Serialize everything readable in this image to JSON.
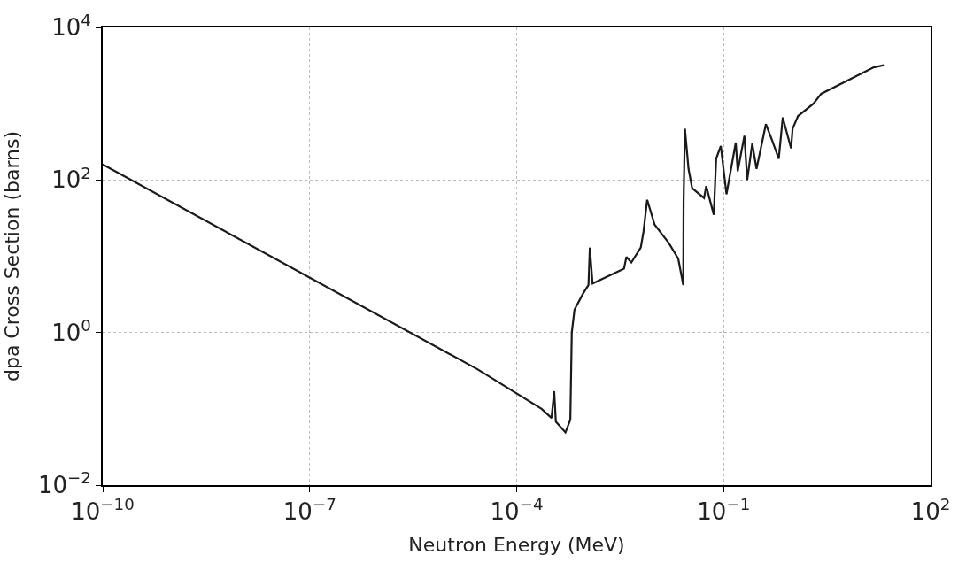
{
  "chart_data": {
    "type": "line",
    "xlabel": "Neutron Energy (MeV)",
    "ylabel": "dpa Cross Section (barns)",
    "log": "xy",
    "grid": true,
    "marker": "none",
    "line_style": "solid",
    "xlim": [
      1e-10,
      100
    ],
    "ylim": [
      0.01,
      10000
    ],
    "xticks": [
      {
        "value": 1e-10,
        "label": "10$^{−10}$"
      },
      {
        "value": 1e-07,
        "label": "10$^{−7}$"
      },
      {
        "value": 0.0001,
        "label": "10$^{−4}$"
      },
      {
        "value": 0.1,
        "label": "10$^{−1}$"
      },
      {
        "value": 100,
        "label": "10$^{2}$"
      }
    ],
    "yticks": [
      {
        "value": 0.01,
        "label": "10$^{−2}$"
      },
      {
        "value": 1,
        "label": "10$^{0}$"
      },
      {
        "value": 100,
        "label": "10$^{2}$"
      },
      {
        "value": 10000,
        "label": "10$^{4}$"
      }
    ],
    "series": [
      {
        "color": "#1a1a1a",
        "x": [
          1e-10,
          2.7e-05,
          0.00023,
          0.00032,
          0.00035,
          0.00037,
          0.00051,
          0.0006,
          0.00063,
          0.00069,
          0.00091,
          0.0011,
          0.00115,
          0.00126,
          0.0036,
          0.0039,
          0.0046,
          0.0063,
          0.0069,
          0.0078,
          0.01,
          0.016,
          0.022,
          0.026,
          0.0263,
          0.0275,
          0.031,
          0.035,
          0.052,
          0.056,
          0.072,
          0.078,
          0.091,
          0.11,
          0.15,
          0.16,
          0.2,
          0.22,
          0.26,
          0.3,
          0.41,
          0.5,
          0.63,
          0.72,
          0.95,
          1.0,
          1.2,
          2.0,
          2.6,
          15,
          21
        ],
        "values": [
          160,
          0.33,
          0.1,
          0.076,
          0.17,
          0.068,
          0.049,
          0.072,
          1.0,
          2.0,
          3.2,
          4.2,
          13,
          4.4,
          6.9,
          9.8,
          8.3,
          13,
          21,
          55,
          26,
          15,
          9.3,
          4.2,
          52,
          470,
          140,
          78,
          58,
          83,
          35,
          190,
          280,
          65,
          310,
          130,
          380,
          100,
          300,
          140,
          540,
          340,
          190,
          660,
          260,
          470,
          690,
          1000,
          1350,
          3000,
          3200
        ]
      }
    ]
  }
}
